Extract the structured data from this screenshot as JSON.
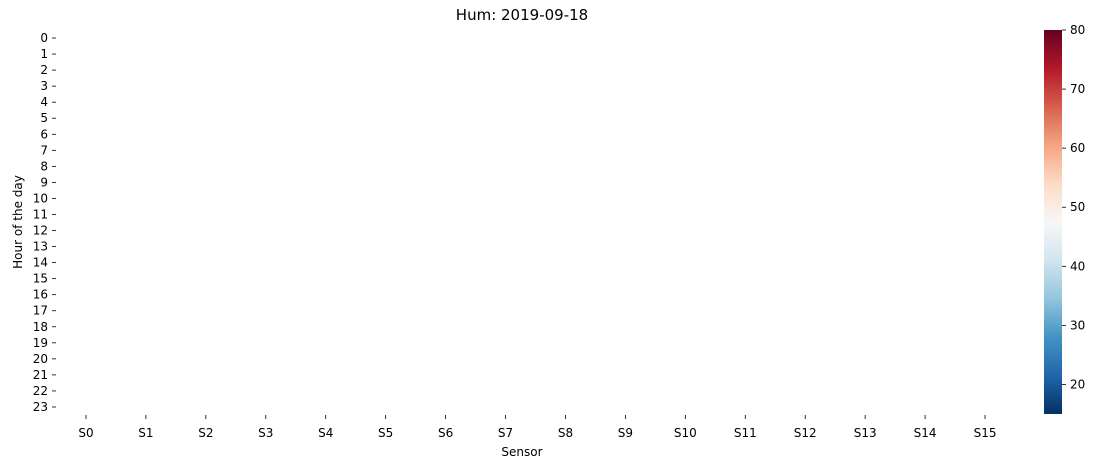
{
  "chart_data": {
    "type": "heatmap",
    "title": "Hum: 2019-09-18",
    "xlabel": "Sensor",
    "ylabel": "Hour of the day",
    "x_categories": [
      "S0",
      "S1",
      "S2",
      "S3",
      "S4",
      "S5",
      "S6",
      "S7",
      "S8",
      "S9",
      "S10",
      "S11",
      "S12",
      "S13",
      "S14",
      "S15"
    ],
    "y_categories": [
      "0",
      "1",
      "2",
      "3",
      "4",
      "5",
      "6",
      "7",
      "8",
      "9",
      "10",
      "11",
      "12",
      "13",
      "14",
      "15",
      "16",
      "17",
      "18",
      "19",
      "20",
      "21",
      "22",
      "23"
    ],
    "values": [],
    "colorbar": {
      "colormap": "RdBu_r",
      "range": [
        15,
        80
      ],
      "ticks": [
        20,
        30,
        40,
        50,
        60,
        70,
        80
      ],
      "stops": [
        "#053061",
        "#2166ac",
        "#4393c3",
        "#92c5de",
        "#d1e5f0",
        "#f7f7f7",
        "#fddbc7",
        "#f4a582",
        "#d6604d",
        "#b2182b",
        "#67001f"
      ]
    },
    "grid": false,
    "legend": "colorbar-right"
  }
}
